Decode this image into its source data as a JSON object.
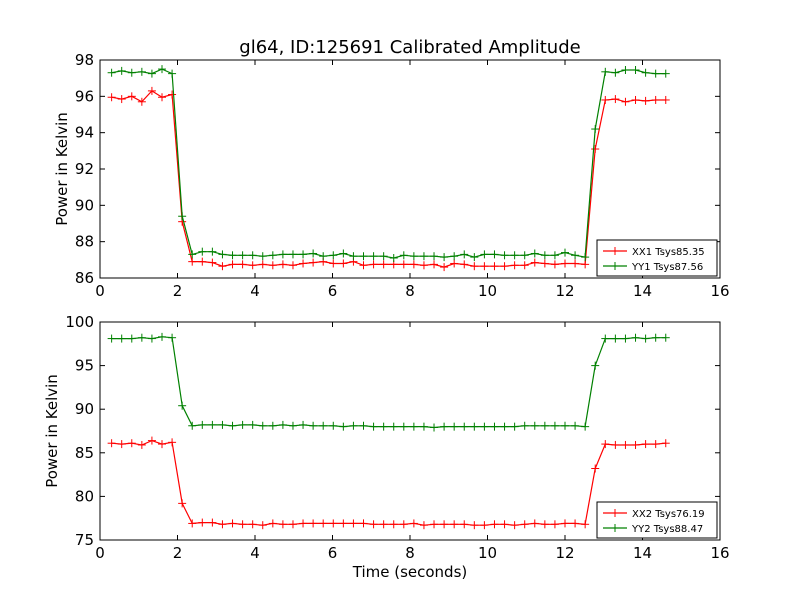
{
  "title": "gl64, ID:125691 Calibrated Amplitude",
  "colors": {
    "XX": "#ff0000",
    "YY": "#008000"
  },
  "chart_data": [
    {
      "type": "line",
      "title": "gl64, ID:125691 Calibrated Amplitude",
      "xlabel": "",
      "ylabel": "Power in Kelvin",
      "xlim": [
        0,
        16
      ],
      "ylim": [
        86,
        98
      ],
      "xticks": [
        0,
        2,
        4,
        6,
        8,
        10,
        12,
        14,
        16
      ],
      "yticks": [
        86,
        88,
        90,
        92,
        94,
        96,
        98
      ],
      "grid": false,
      "legend": "bottom-right",
      "x": [
        0.3,
        0.56,
        0.82,
        1.08,
        1.34,
        1.6,
        1.86,
        2.12,
        2.38,
        2.64,
        2.9,
        3.16,
        3.42,
        3.68,
        3.94,
        4.2,
        4.46,
        4.72,
        4.98,
        5.24,
        5.5,
        5.76,
        6.02,
        6.28,
        6.54,
        6.8,
        7.06,
        7.32,
        7.58,
        7.84,
        8.1,
        8.36,
        8.62,
        8.88,
        9.14,
        9.4,
        9.66,
        9.92,
        10.18,
        10.44,
        10.7,
        10.96,
        11.22,
        11.48,
        11.74,
        12.0,
        12.26,
        12.52,
        12.78,
        13.04,
        13.3,
        13.56,
        13.82,
        14.08,
        14.34,
        14.6
      ],
      "series": [
        {
          "name": "XX1 Tsys85.35",
          "color": "#ff0000",
          "values": [
            95.95,
            95.85,
            96.0,
            95.7,
            96.3,
            95.95,
            96.1,
            89.1,
            86.9,
            86.9,
            86.85,
            86.65,
            86.75,
            86.75,
            86.7,
            86.75,
            86.7,
            86.75,
            86.7,
            86.8,
            86.85,
            86.9,
            86.8,
            86.8,
            86.9,
            86.7,
            86.75,
            86.75,
            86.75,
            86.75,
            86.75,
            86.7,
            86.75,
            86.6,
            86.8,
            86.75,
            86.65,
            86.65,
            86.65,
            86.65,
            86.7,
            86.7,
            86.85,
            86.8,
            86.75,
            86.8,
            86.8,
            86.75,
            93.1,
            95.8,
            95.85,
            95.7,
            95.8,
            95.75,
            95.8,
            95.8
          ]
        },
        {
          "name": "YY1 Tsys87.56",
          "color": "#008000",
          "values": [
            97.3,
            97.4,
            97.3,
            97.35,
            97.25,
            97.5,
            97.25,
            89.4,
            87.3,
            87.45,
            87.45,
            87.3,
            87.25,
            87.25,
            87.25,
            87.2,
            87.25,
            87.3,
            87.3,
            87.3,
            87.35,
            87.2,
            87.25,
            87.35,
            87.2,
            87.2,
            87.2,
            87.2,
            87.1,
            87.25,
            87.2,
            87.2,
            87.2,
            87.15,
            87.2,
            87.3,
            87.15,
            87.3,
            87.3,
            87.25,
            87.25,
            87.25,
            87.35,
            87.25,
            87.25,
            87.4,
            87.25,
            87.15,
            94.2,
            97.35,
            97.3,
            97.45,
            97.45,
            97.3,
            97.25,
            97.25
          ]
        }
      ]
    },
    {
      "type": "line",
      "title": "",
      "xlabel": "Time (seconds)",
      "ylabel": "Power in Kelvin",
      "xlim": [
        0,
        16
      ],
      "ylim": [
        75,
        100
      ],
      "xticks": [
        0,
        2,
        4,
        6,
        8,
        10,
        12,
        14,
        16
      ],
      "yticks": [
        75,
        80,
        85,
        90,
        95,
        100
      ],
      "grid": false,
      "legend": "bottom-right",
      "x": [
        0.3,
        0.56,
        0.82,
        1.08,
        1.34,
        1.6,
        1.86,
        2.12,
        2.38,
        2.64,
        2.9,
        3.16,
        3.42,
        3.68,
        3.94,
        4.2,
        4.46,
        4.72,
        4.98,
        5.24,
        5.5,
        5.76,
        6.02,
        6.28,
        6.54,
        6.8,
        7.06,
        7.32,
        7.58,
        7.84,
        8.1,
        8.36,
        8.62,
        8.88,
        9.14,
        9.4,
        9.66,
        9.92,
        10.18,
        10.44,
        10.7,
        10.96,
        11.22,
        11.48,
        11.74,
        12.0,
        12.26,
        12.52,
        12.78,
        13.04,
        13.3,
        13.56,
        13.82,
        14.08,
        14.34,
        14.6
      ],
      "series": [
        {
          "name": "XX2 Tsys76.19",
          "color": "#ff0000",
          "values": [
            86.1,
            86.0,
            86.1,
            85.9,
            86.4,
            86.0,
            86.2,
            79.2,
            76.9,
            77.0,
            77.0,
            76.8,
            76.9,
            76.8,
            76.8,
            76.7,
            76.9,
            76.8,
            76.8,
            76.9,
            76.9,
            76.9,
            76.9,
            76.9,
            76.9,
            76.9,
            76.8,
            76.8,
            76.8,
            76.8,
            76.9,
            76.7,
            76.8,
            76.8,
            76.8,
            76.8,
            76.7,
            76.7,
            76.8,
            76.8,
            76.7,
            76.8,
            76.9,
            76.8,
            76.8,
            76.9,
            76.9,
            76.8,
            83.2,
            86.0,
            85.9,
            85.9,
            85.9,
            86.0,
            86.0,
            86.1
          ]
        },
        {
          "name": "YY2 Tsys88.47",
          "color": "#008000",
          "values": [
            98.1,
            98.1,
            98.1,
            98.2,
            98.1,
            98.3,
            98.2,
            90.4,
            88.1,
            88.2,
            88.2,
            88.2,
            88.1,
            88.2,
            88.2,
            88.1,
            88.1,
            88.2,
            88.1,
            88.2,
            88.1,
            88.1,
            88.1,
            88.0,
            88.1,
            88.1,
            88.0,
            88.0,
            88.0,
            88.0,
            88.0,
            88.0,
            87.9,
            88.0,
            88.0,
            88.0,
            88.0,
            88.0,
            88.0,
            88.0,
            88.0,
            88.1,
            88.1,
            88.1,
            88.1,
            88.1,
            88.1,
            88.0,
            95.0,
            98.1,
            98.1,
            98.1,
            98.2,
            98.1,
            98.2,
            98.2
          ]
        }
      ]
    }
  ]
}
